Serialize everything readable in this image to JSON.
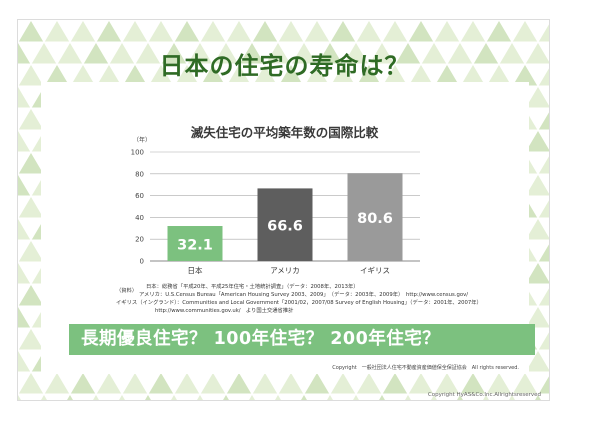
{
  "slide_title": "日本の住宅の寿命は？",
  "chart_data": {
    "type": "bar",
    "title": "滅失住宅の平均築年数の国際比較",
    "ylabel": "（年）",
    "ylim": [
      0,
      100
    ],
    "yticks": [
      0,
      20,
      40,
      60,
      80,
      100
    ],
    "grid": true,
    "categories": [
      "日本",
      "アメリカ",
      "イギリス"
    ],
    "values": [
      32.1,
      66.6,
      80.6
    ],
    "value_labels": [
      "32.1",
      "66.6",
      "80.6"
    ],
    "colors": [
      "#7cc17f",
      "#5e5e5e",
      "#9a9a9a"
    ]
  },
  "source": {
    "label": "（資料）",
    "lines": [
      "日本：総務省「平成20年、平成25年住宅・土地統計調査」（データ：2008年、2013年）",
      "アメリカ：U.S.Census Bureau「American Housing Survey 2003、2009」　（データ：2003年、2009年）　http://www.census.gov/",
      "イギリス（イングランド）：Communities and Local Government「2001/02，2007/08 Survey of English Housing」（データ：2001年、2007年）",
      "http://www.communities.gov.uk/　より国土交通省推計"
    ]
  },
  "banner_text": "長期優良住宅？ 100年住宅？ 200年住宅？",
  "copyright_inner": "Copyright　一般社団法人住宅不動産資産価値保全保証協会　All rights reserved.",
  "copyright_outer": "Copyright HyAS&Co.Inc.Allrightsreserved",
  "colors": {
    "title": "#2f6b25",
    "banner": "#7cc17f",
    "pattern_light": "#e4efd6",
    "pattern_mid": "#d2e4c0"
  }
}
